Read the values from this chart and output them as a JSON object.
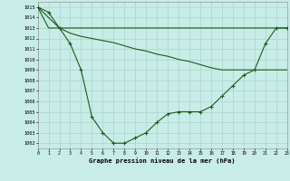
{
  "title": "Graphe pression niveau de la mer (hPa)",
  "bg_color": "#c8ece8",
  "grid_color": "#b0d8d0",
  "line_color": "#1a5c1a",
  "marker": "+",
  "xlim": [
    0,
    23
  ],
  "ylim": [
    1001.5,
    1015.5
  ],
  "yticks": [
    1002,
    1003,
    1004,
    1005,
    1006,
    1007,
    1008,
    1009,
    1010,
    1011,
    1012,
    1013,
    1014,
    1015
  ],
  "xticks": [
    0,
    1,
    2,
    3,
    4,
    5,
    6,
    7,
    8,
    9,
    10,
    11,
    12,
    13,
    14,
    15,
    16,
    17,
    18,
    19,
    20,
    21,
    22,
    23
  ],
  "series1_x": [
    0,
    1,
    2,
    3,
    4,
    5,
    6,
    7,
    8,
    9,
    10,
    11,
    12,
    13,
    14,
    15,
    16,
    17,
    18,
    19,
    20,
    21,
    22,
    23
  ],
  "series1_y": [
    1015,
    1014.5,
    1013,
    1011.5,
    1009,
    1004.5,
    1003,
    1002,
    1002,
    1002.5,
    1003,
    1004,
    1004.8,
    1005,
    1005,
    1005,
    1005.5,
    1006.5,
    1007.5,
    1008.5,
    1009,
    1011.5,
    1013,
    1013
  ],
  "series2_x": [
    0,
    1,
    2,
    3,
    4,
    5,
    6,
    7,
    8,
    9,
    10,
    11,
    12,
    13,
    14,
    15,
    16,
    17,
    18,
    19,
    20,
    21,
    22,
    23
  ],
  "series2_y": [
    1015,
    1013,
    1013,
    1012.5,
    1012.2,
    1012,
    1011.8,
    1011.6,
    1011.3,
    1011,
    1010.8,
    1010.5,
    1010.3,
    1010,
    1009.8,
    1009.5,
    1009.2,
    1009,
    1009,
    1009,
    1009,
    1009,
    1009,
    1009
  ],
  "series3_x": [
    0,
    2,
    23
  ],
  "series3_y": [
    1015,
    1013,
    1013
  ]
}
